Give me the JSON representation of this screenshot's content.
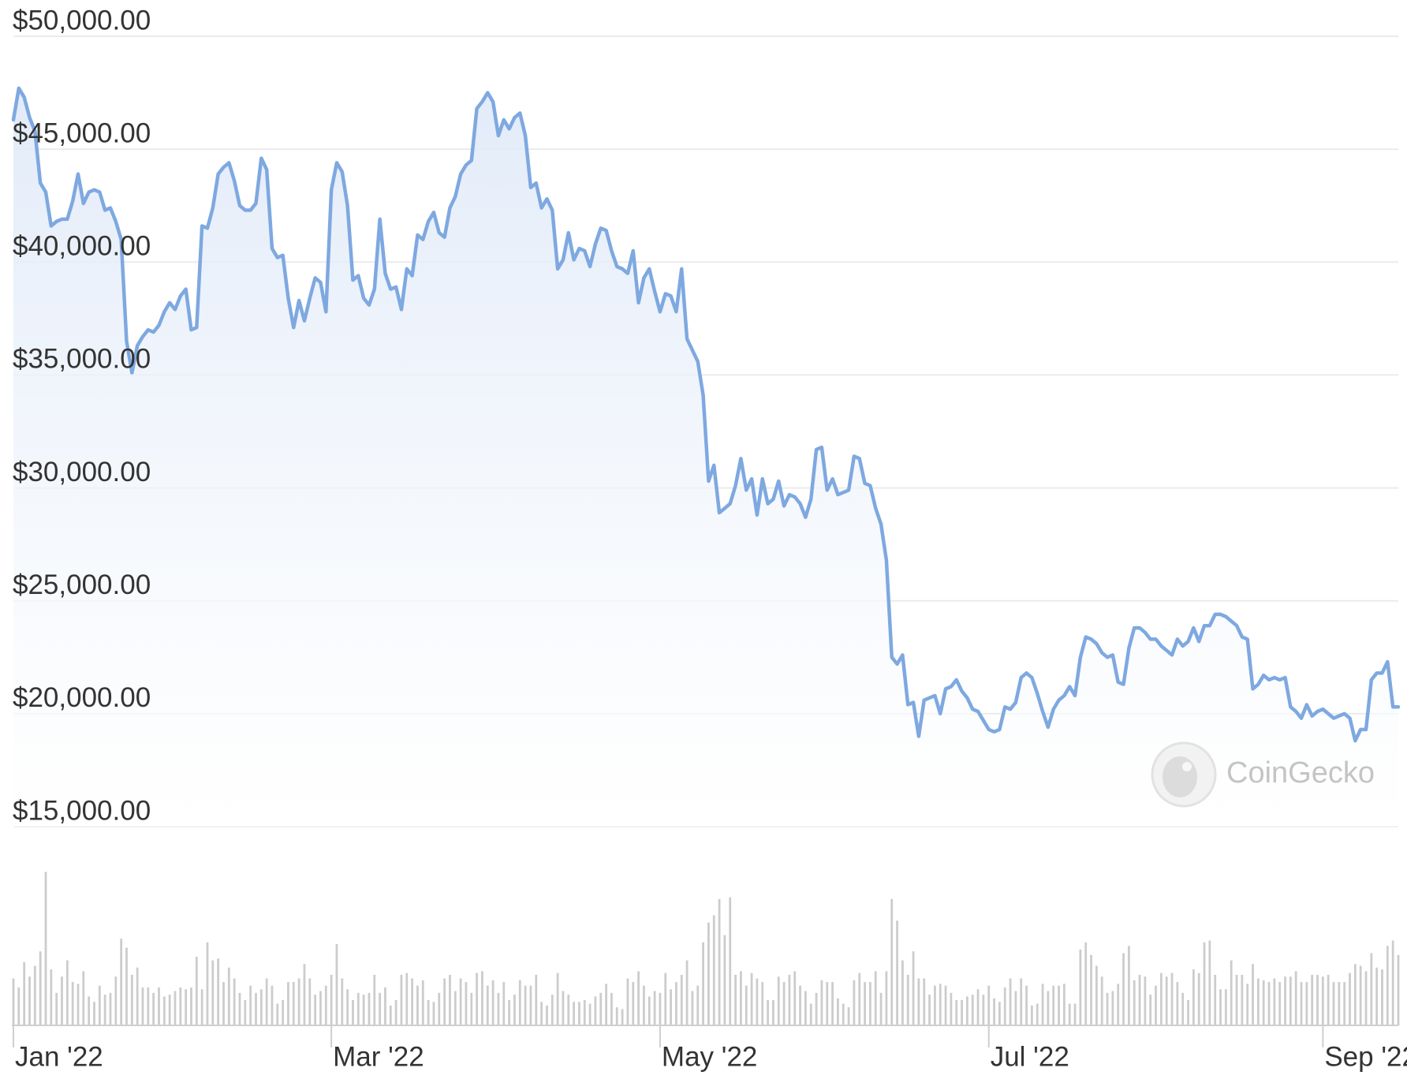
{
  "chart_data": {
    "type": "line",
    "categories": [
      "Jan '22",
      null,
      null,
      null,
      null,
      null,
      null,
      null,
      null,
      null,
      null,
      null,
      null,
      null,
      null,
      null,
      null,
      null,
      null,
      null,
      null,
      null,
      null,
      null,
      null,
      null,
      null,
      null,
      null,
      null,
      null,
      null,
      null,
      null,
      null,
      null,
      null,
      null,
      null,
      null,
      null,
      null,
      null,
      null,
      null,
      null,
      null,
      null,
      null,
      null,
      null,
      null,
      null,
      null,
      null,
      null,
      null,
      null,
      null,
      "Mar '22",
      null,
      null,
      null,
      null,
      null,
      null,
      null,
      null,
      null,
      null,
      null,
      null,
      null,
      null,
      null,
      null,
      null,
      null,
      null,
      null,
      null,
      null,
      null,
      null,
      null,
      null,
      null,
      null,
      null,
      null,
      null,
      null,
      null,
      null,
      null,
      null,
      null,
      null,
      null,
      null,
      null,
      null,
      null,
      null,
      null,
      null,
      null,
      null,
      null,
      null,
      null,
      null,
      null,
      null,
      null,
      null,
      null,
      null,
      null,
      null,
      "May '22",
      null,
      null,
      null,
      null,
      null,
      null,
      null,
      null,
      null,
      null,
      null,
      null,
      null,
      null,
      null,
      null,
      null,
      null,
      null,
      null,
      null,
      null,
      null,
      null,
      null,
      null,
      null,
      null,
      null,
      null,
      null,
      null,
      null,
      null,
      null,
      null,
      null,
      null,
      null,
      null,
      null,
      null,
      null,
      null,
      null,
      null,
      null,
      null,
      null,
      null,
      null,
      null,
      null,
      null,
      null,
      null,
      null,
      null,
      null,
      null,
      "Jul '22",
      null,
      null,
      null,
      null,
      null,
      null,
      null,
      null,
      null,
      null,
      null,
      null,
      null,
      null,
      null,
      null,
      null,
      null,
      null,
      null,
      null,
      null,
      null,
      null,
      null,
      null,
      null,
      null,
      null,
      null,
      null,
      null,
      null,
      null,
      null,
      null,
      null,
      null,
      null,
      null,
      null,
      null,
      null,
      null,
      null,
      null,
      null,
      null,
      null,
      null,
      null,
      null,
      null,
      null,
      null,
      null,
      null,
      null,
      null,
      null,
      null,
      "Sep '22",
      null,
      null,
      null,
      null,
      null,
      null,
      null,
      null,
      null,
      null,
      null,
      null,
      null,
      null
    ],
    "series": [
      {
        "color": "#7ea8e0",
        "values": [
          46300,
          47700,
          47300,
          46400,
          45800,
          43500,
          43100,
          41600,
          41800,
          41900,
          41900,
          42700,
          43900,
          42600,
          43100,
          43200,
          43100,
          42300,
          42400,
          41800,
          41000,
          36500,
          35100,
          36300,
          36700,
          37000,
          36900,
          37200,
          37800,
          38200,
          37900,
          38500,
          38800,
          37000,
          37100,
          41600,
          41500,
          42400,
          43900,
          44200,
          44400,
          43600,
          42500,
          42300,
          42300,
          42600,
          44600,
          44100,
          40600,
          40200,
          40300,
          38400,
          37100,
          38300,
          37400,
          38400,
          39300,
          39100,
          37800,
          43200,
          44400,
          44000,
          42500,
          39200,
          39400,
          38400,
          38100,
          38800,
          41900,
          39500,
          38800,
          38900,
          37900,
          39700,
          39400,
          41200,
          41000,
          41800,
          42200,
          41300,
          41100,
          42400,
          42900,
          43900,
          44300,
          44500,
          46800,
          47100,
          47500,
          47100,
          45600,
          46300,
          45900,
          46400,
          46600,
          45600,
          43300,
          43500,
          42400,
          42800,
          42300,
          39700,
          40100,
          41300,
          40100,
          40600,
          40500,
          39800,
          40800,
          41500,
          41400,
          40500,
          39800,
          39700,
          39500,
          40500,
          38200,
          39300,
          39700,
          38700,
          37800,
          38600,
          38500,
          37800,
          39700,
          36600,
          36100,
          35600,
          34100,
          30300,
          31000,
          28900,
          29100,
          29300,
          30100,
          31300,
          29900,
          30400,
          28800,
          30400,
          29300,
          29500,
          30300,
          29200,
          29700,
          29600,
          29300,
          28700,
          29500,
          31700,
          31800,
          29900,
          30400,
          29700,
          29800,
          29900,
          31400,
          31300,
          30200,
          30100,
          29100,
          28400,
          26800,
          22500,
          22200,
          22600,
          20400,
          20500,
          19000,
          20600,
          20700,
          20800,
          20000,
          21100,
          21200,
          21500,
          21000,
          20700,
          20200,
          20100,
          19700,
          19300,
          19200,
          19300,
          20300,
          20200,
          20500,
          21600,
          21800,
          21600,
          20900,
          20100,
          19400,
          20200,
          20600,
          20800,
          21200,
          20800,
          22500,
          23400,
          23300,
          23100,
          22700,
          22500,
          22600,
          21400,
          21300,
          22900,
          23800,
          23800,
          23600,
          23300,
          23300,
          23000,
          22800,
          22600,
          23300,
          23000,
          23200,
          23800,
          23200,
          23900,
          23900,
          24400,
          24400,
          24300,
          24100,
          23900,
          23400,
          23300,
          21100,
          21300,
          21700,
          21500,
          21600,
          21500,
          21600,
          20300,
          20100,
          19800,
          20400,
          19900,
          20100,
          20200,
          20000,
          19800,
          19900,
          20000,
          19800,
          18800,
          19300,
          19300,
          21500,
          21800,
          21800,
          22300,
          20300,
          20300
        ]
      },
      {
        "type": "bar",
        "axis": "y2",
        "color": "#cccccc",
        "values": [
          26,
          21,
          35,
          27,
          33,
          41,
          85,
          31,
          18,
          27,
          36,
          24,
          23,
          30,
          16,
          13,
          22,
          17,
          18,
          27,
          48,
          43,
          28,
          32,
          21,
          21,
          18,
          21,
          16,
          17,
          19,
          21,
          20,
          21,
          38,
          20,
          46,
          36,
          37,
          24,
          32,
          26,
          18,
          14,
          22,
          18,
          20,
          26,
          22,
          12,
          14,
          24,
          24,
          26,
          34,
          26,
          17,
          19,
          22,
          28,
          45,
          26,
          20,
          14,
          18,
          17,
          18,
          28,
          18,
          21,
          11,
          14,
          28,
          29,
          26,
          22,
          25,
          14,
          13,
          18,
          26,
          28,
          19,
          26,
          24,
          18,
          29,
          30,
          22,
          25,
          18,
          24,
          14,
          17,
          25,
          22,
          22,
          28,
          13,
          11,
          17,
          29,
          19,
          17,
          13,
          13,
          14,
          12,
          16,
          18,
          23,
          18,
          10,
          9,
          26,
          24,
          30,
          22,
          16,
          19,
          18,
          29,
          20,
          24,
          28,
          36,
          19,
          22,
          46,
          57,
          61,
          70,
          50,
          71,
          28,
          30,
          22,
          29,
          26,
          24,
          14,
          14,
          27,
          24,
          28,
          30,
          22,
          19,
          12,
          18,
          25,
          24,
          24,
          15,
          12,
          10,
          25,
          29,
          24,
          24,
          30,
          18,
          30,
          70,
          58,
          36,
          28,
          41,
          26,
          26,
          17,
          22,
          23,
          22,
          18,
          14,
          14,
          16,
          17,
          20,
          17,
          22,
          15,
          13,
          21,
          26,
          19,
          26,
          22,
          11,
          12,
          23,
          19,
          22,
          22,
          23,
          12,
          12,
          42,
          46,
          39,
          33,
          27,
          18,
          19,
          23,
          40,
          44,
          25,
          28,
          27,
          17,
          22,
          29,
          27,
          29,
          24,
          18,
          14,
          31,
          29,
          46,
          47,
          28,
          20,
          20,
          36,
          28,
          28,
          23,
          34,
          26,
          25,
          24,
          26,
          24,
          27,
          27,
          30,
          24,
          24,
          28,
          28,
          27,
          28,
          24,
          24,
          24,
          29,
          34,
          33,
          30,
          40,
          32,
          31,
          44,
          47,
          39
        ]
      }
    ],
    "ylim": [
      15000,
      50000
    ],
    "yticks": [
      {
        "value": 15000,
        "label": "$15,000.00"
      },
      {
        "value": 20000,
        "label": "$20,000.00"
      },
      {
        "value": 25000,
        "label": "$25,000.00"
      },
      {
        "value": 30000,
        "label": "$30,000.00"
      },
      {
        "value": 35000,
        "label": "$35,000.00"
      },
      {
        "value": 40000,
        "label": "$40,000.00"
      },
      {
        "value": 45000,
        "label": "$45,000.00"
      },
      {
        "value": 50000,
        "label": "$50,000.00"
      }
    ],
    "y2lim": [
      0,
      90
    ],
    "grid": true,
    "watermark": "CoinGecko"
  }
}
